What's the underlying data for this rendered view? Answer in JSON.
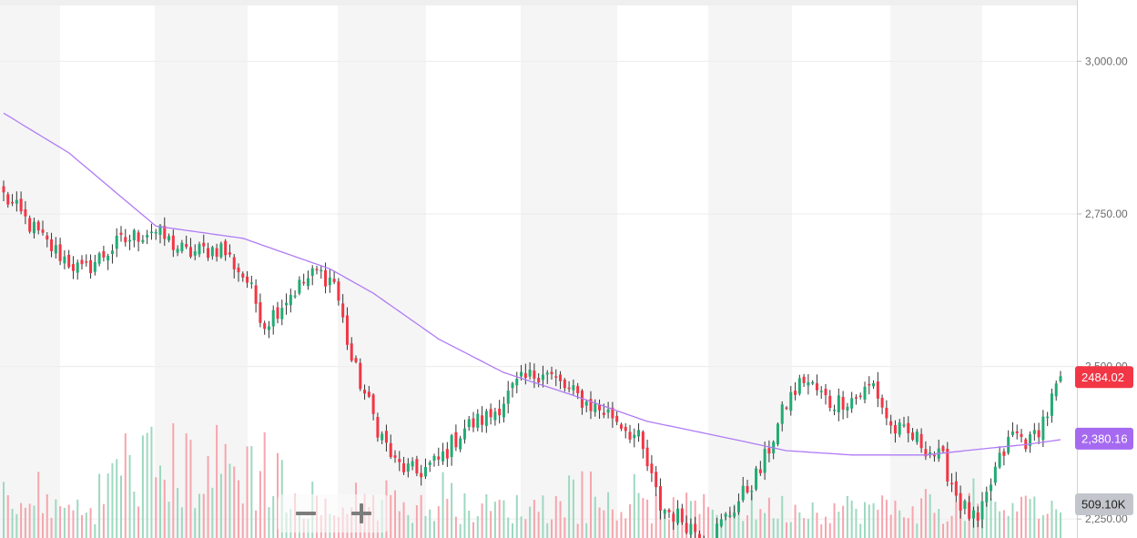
{
  "chart_data": {
    "type": "candlestick",
    "title": "",
    "xlabel": "",
    "ylabel": "",
    "ylim": [
      2210,
      3090
    ],
    "y_ticks": [
      {
        "value": 3000,
        "label": "3,000.00"
      },
      {
        "value": 2750,
        "label": "2,750.00"
      },
      {
        "value": 2500,
        "label": "2,500.00"
      },
      {
        "value": 2250,
        "label": "2,250.00"
      }
    ],
    "grid": "horizontal",
    "last_price": {
      "value": 2484.02,
      "label": "2484.02"
    },
    "moving_average_last": {
      "value": 2380.16,
      "label": "2,380.16"
    },
    "volume_last": {
      "label": "509.10K"
    },
    "colors": {
      "up": "#22ab74",
      "down": "#f23645",
      "ma": "#b07bf5",
      "last_price_badge": "#f23645",
      "ma_badge": "#a56af0",
      "volume_badge": "#c2c6cc",
      "band": "#f5f5f5"
    },
    "anchors": [
      {
        "i": 0,
        "p": 2780
      },
      {
        "i": 10,
        "p": 2700
      },
      {
        "i": 18,
        "p": 2655
      },
      {
        "i": 26,
        "p": 2700
      },
      {
        "i": 34,
        "p": 2725
      },
      {
        "i": 42,
        "p": 2685
      },
      {
        "i": 50,
        "p": 2695
      },
      {
        "i": 56,
        "p": 2640
      },
      {
        "i": 60,
        "p": 2570
      },
      {
        "i": 66,
        "p": 2620
      },
      {
        "i": 72,
        "p": 2655
      },
      {
        "i": 76,
        "p": 2640
      },
      {
        "i": 80,
        "p": 2510
      },
      {
        "i": 86,
        "p": 2400
      },
      {
        "i": 90,
        "p": 2340
      },
      {
        "i": 95,
        "p": 2325
      },
      {
        "i": 100,
        "p": 2345
      },
      {
        "i": 106,
        "p": 2400
      },
      {
        "i": 112,
        "p": 2420
      },
      {
        "i": 118,
        "p": 2470
      },
      {
        "i": 124,
        "p": 2495
      },
      {
        "i": 128,
        "p": 2470
      },
      {
        "i": 134,
        "p": 2440
      },
      {
        "i": 140,
        "p": 2420
      },
      {
        "i": 146,
        "p": 2380
      },
      {
        "i": 151,
        "p": 2270
      },
      {
        "i": 156,
        "p": 2250
      },
      {
        "i": 162,
        "p": 2215
      },
      {
        "i": 168,
        "p": 2270
      },
      {
        "i": 174,
        "p": 2330
      },
      {
        "i": 180,
        "p": 2440
      },
      {
        "i": 184,
        "p": 2480
      },
      {
        "i": 190,
        "p": 2440
      },
      {
        "i": 196,
        "p": 2450
      },
      {
        "i": 200,
        "p": 2470
      },
      {
        "i": 204,
        "p": 2400
      },
      {
        "i": 210,
        "p": 2380
      },
      {
        "i": 216,
        "p": 2345
      },
      {
        "i": 220,
        "p": 2275
      },
      {
        "i": 224,
        "p": 2240
      },
      {
        "i": 228,
        "p": 2330
      },
      {
        "i": 232,
        "p": 2390
      },
      {
        "i": 236,
        "p": 2375
      },
      {
        "i": 240,
        "p": 2425
      },
      {
        "i": 243,
        "p": 2484
      }
    ],
    "moving_average": [
      {
        "i": 0,
        "p": 2915
      },
      {
        "i": 15,
        "p": 2850
      },
      {
        "i": 35,
        "p": 2730
      },
      {
        "i": 55,
        "p": 2710
      },
      {
        "i": 75,
        "p": 2660
      },
      {
        "i": 85,
        "p": 2620
      },
      {
        "i": 100,
        "p": 2545
      },
      {
        "i": 115,
        "p": 2490
      },
      {
        "i": 130,
        "p": 2455
      },
      {
        "i": 148,
        "p": 2410
      },
      {
        "i": 165,
        "p": 2385
      },
      {
        "i": 180,
        "p": 2362
      },
      {
        "i": 195,
        "p": 2355
      },
      {
        "i": 212,
        "p": 2355
      },
      {
        "i": 225,
        "p": 2365
      },
      {
        "i": 235,
        "p": 2372
      },
      {
        "i": 243,
        "p": 2380
      }
    ],
    "volume_high_zone": [
      [
        24,
        64
      ]
    ],
    "vol_max_label": "509.10K"
  }
}
